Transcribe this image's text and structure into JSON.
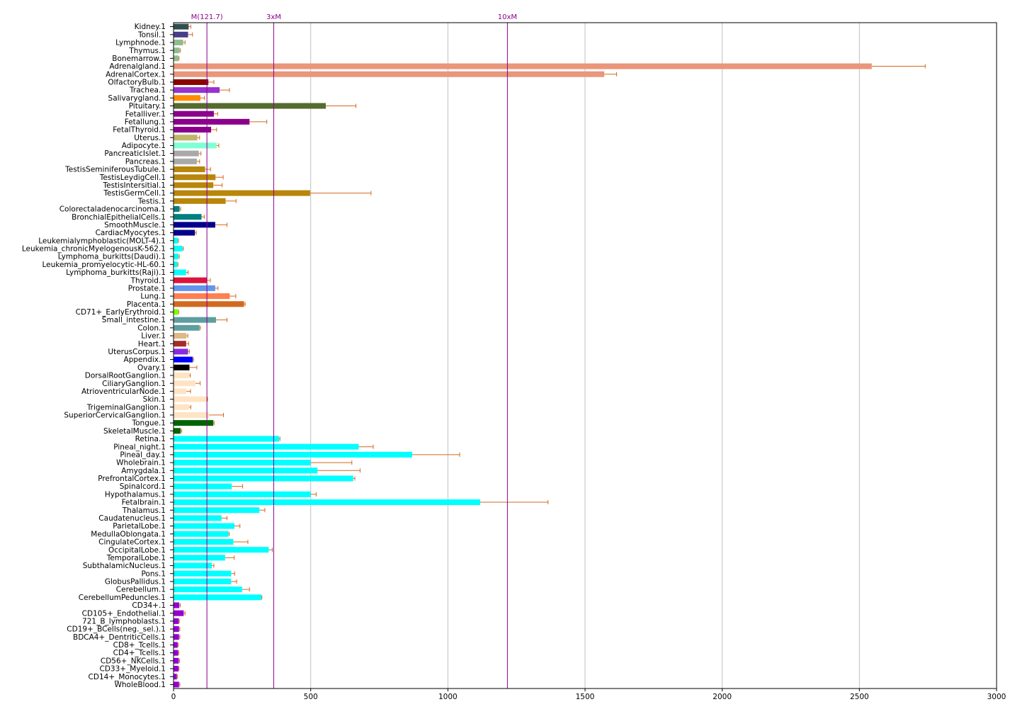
{
  "chart_data": {
    "type": "bar",
    "orientation": "horizontal",
    "title": "",
    "xlabel": "",
    "ylabel": "",
    "xlim": [
      0,
      3000
    ],
    "xticks": [
      0,
      500,
      1000,
      1500,
      2000,
      2500,
      3000
    ],
    "grid": "vertical",
    "legend": "none",
    "reference_lines": [
      {
        "label": "M(121.7)",
        "value": 121.7
      },
      {
        "label": "3xM",
        "value": 365.1
      },
      {
        "label": "10xM",
        "value": 1217
      }
    ],
    "colors": {
      "reference": "#8b008b",
      "errorbar": "#d2691e",
      "grid": "#bfbfbf"
    },
    "bars": [
      {
        "label": "Kidney.1",
        "value": 55,
        "error": 8,
        "color": "#2f4f4f"
      },
      {
        "label": "Tonsil.1",
        "value": 53,
        "error": 16,
        "color": "#483d8b"
      },
      {
        "label": "Lymphnode.1",
        "value": 35,
        "error": 7,
        "color": "#8fbc8f"
      },
      {
        "label": "Thymus.1",
        "value": 22,
        "error": 3,
        "color": "#8fbc8f"
      },
      {
        "label": "Bonemarrow.1",
        "value": 18,
        "error": 2,
        "color": "#8fbc8f"
      },
      {
        "label": "Adrenalgland.1",
        "value": 2545,
        "error": 195,
        "color": "#e9967a"
      },
      {
        "label": "AdrenalCortex.1",
        "value": 1570,
        "error": 45,
        "color": "#e9967a"
      },
      {
        "label": "OlfactoryBulb.1",
        "value": 127,
        "error": 20,
        "color": "#8b0000"
      },
      {
        "label": "Trachea.1",
        "value": 168,
        "error": 36,
        "color": "#9932cc"
      },
      {
        "label": "Salivarygland.1",
        "value": 98,
        "error": 15,
        "color": "#ff8c00"
      },
      {
        "label": "Pituitary.1",
        "value": 555,
        "error": 110,
        "color": "#556b2f"
      },
      {
        "label": "Fetalliver.1",
        "value": 147,
        "error": 14,
        "color": "#8b008b"
      },
      {
        "label": "Fetallung.1",
        "value": 277,
        "error": 63,
        "color": "#8b008b"
      },
      {
        "label": "FetalThyroid.1",
        "value": 137,
        "error": 20,
        "color": "#8b008b"
      },
      {
        "label": "Uterus.1",
        "value": 87,
        "error": 8,
        "color": "#bdb76b"
      },
      {
        "label": "Adipocyte.1",
        "value": 157,
        "error": 8,
        "color": "#7fffd4"
      },
      {
        "label": "PancreaticIslet.1",
        "value": 92,
        "error": 8,
        "color": "#a9a9a9"
      },
      {
        "label": "Pancreas.1",
        "value": 85,
        "error": 10,
        "color": "#a9a9a9"
      },
      {
        "label": "TestisSeminiferousTubule.1",
        "value": 115,
        "error": 20,
        "color": "#b8860b"
      },
      {
        "label": "TestisLeydigCell.1",
        "value": 153,
        "error": 28,
        "color": "#b8860b"
      },
      {
        "label": "TestisIntersitial.1",
        "value": 145,
        "error": 32,
        "color": "#b8860b"
      },
      {
        "label": "TestisGermCell.1",
        "value": 498,
        "error": 222,
        "color": "#b8860b"
      },
      {
        "label": "Testis.1",
        "value": 190,
        "error": 38,
        "color": "#b8860b"
      },
      {
        "label": "Colorectaladenocarcinoma.1",
        "value": 22,
        "error": 4,
        "color": "#008080"
      },
      {
        "label": "BronchialEpithelialCells.1",
        "value": 102,
        "error": 10,
        "color": "#008080"
      },
      {
        "label": "SmoothMuscle.1",
        "value": 152,
        "error": 43,
        "color": "#00008b"
      },
      {
        "label": "CardiacMyocytes.1",
        "value": 78,
        "error": 5,
        "color": "#00008b"
      },
      {
        "label": "Leukemialymphoblastic(MOLT-4).1",
        "value": 16,
        "error": 2,
        "color": "#00ffff"
      },
      {
        "label": "Leukemia_chronicMyelogenousK-562.1",
        "value": 33,
        "error": 3,
        "color": "#00ffff"
      },
      {
        "label": "Lymphoma_burkitts(Daudi).1",
        "value": 18,
        "error": 3,
        "color": "#00ffff"
      },
      {
        "label": "Leukemia_promyelocytic-HL-60.1",
        "value": 14,
        "error": 2,
        "color": "#00ffff"
      },
      {
        "label": "Lymphoma_burkitts(Raji).1",
        "value": 46,
        "error": 7,
        "color": "#00ffff"
      },
      {
        "label": "Thyroid.1",
        "value": 122,
        "error": 12,
        "color": "#dc143c"
      },
      {
        "label": "Prostate.1",
        "value": 152,
        "error": 10,
        "color": "#6495ed"
      },
      {
        "label": "Lung.1",
        "value": 205,
        "error": 22,
        "color": "#ff7f50"
      },
      {
        "label": "Placenta.1",
        "value": 257,
        "error": 4,
        "color": "#d2691e"
      },
      {
        "label": "CD71+_EarlyErythroid.1",
        "value": 17,
        "error": 2,
        "color": "#7fff00"
      },
      {
        "label": "Small_intestine.1",
        "value": 155,
        "error": 40,
        "color": "#5f9ea0"
      },
      {
        "label": "Colon.1",
        "value": 95,
        "error": 3,
        "color": "#5f9ea0"
      },
      {
        "label": "Liver.1",
        "value": 47,
        "error": 5,
        "color": "#deb887"
      },
      {
        "label": "Heart.1",
        "value": 46,
        "error": 9,
        "color": "#a52a2a"
      },
      {
        "label": "UterusCorpus.1",
        "value": 53,
        "error": 5,
        "color": "#8a2be2"
      },
      {
        "label": "Appendix.1",
        "value": 70,
        "error": 3,
        "color": "#0000ff"
      },
      {
        "label": "Ovary.1",
        "value": 58,
        "error": 27,
        "color": "#000000"
      },
      {
        "label": "DorsalRootGanglion.1",
        "value": 57,
        "error": 4,
        "color": "#ffe4c4"
      },
      {
        "label": "CiliaryGanglion.1",
        "value": 80,
        "error": 17,
        "color": "#ffe4c4"
      },
      {
        "label": "AtrioventricularNode.1",
        "value": 47,
        "error": 15,
        "color": "#ffe4c4"
      },
      {
        "label": "Skin.1",
        "value": 122,
        "error": 2,
        "color": "#ffe4c4"
      },
      {
        "label": "TrigeminalGanglion.1",
        "value": 56,
        "error": 7,
        "color": "#ffe4c4"
      },
      {
        "label": "SuperiorCervicalGanglion.1",
        "value": 130,
        "error": 52,
        "color": "#ffe4c4"
      },
      {
        "label": "Tongue.1",
        "value": 145,
        "error": 3,
        "color": "#006400"
      },
      {
        "label": "SkeletalMuscle.1",
        "value": 26,
        "error": 4,
        "color": "#006400"
      },
      {
        "label": "Retina.1",
        "value": 385,
        "error": 3,
        "color": "#00ffff"
      },
      {
        "label": "Pineal_night.1",
        "value": 675,
        "error": 53,
        "color": "#00ffff"
      },
      {
        "label": "Pineal_day.1",
        "value": 870,
        "error": 173,
        "color": "#00ffff"
      },
      {
        "label": "Wholebrain.1",
        "value": 500,
        "error": 150,
        "color": "#00ffff"
      },
      {
        "label": "Amygdala.1",
        "value": 525,
        "error": 155,
        "color": "#00ffff"
      },
      {
        "label": "PrefrontalCortex.1",
        "value": 655,
        "error": 6,
        "color": "#00ffff"
      },
      {
        "label": "Spinalcord.1",
        "value": 212,
        "error": 40,
        "color": "#00ffff"
      },
      {
        "label": "Hypothalamus.1",
        "value": 500,
        "error": 20,
        "color": "#00ffff"
      },
      {
        "label": "Fetalbrain.1",
        "value": 1118,
        "error": 247,
        "color": "#00ffff"
      },
      {
        "label": "Thalamus.1",
        "value": 313,
        "error": 20,
        "color": "#00ffff"
      },
      {
        "label": "Caudatenucleus.1",
        "value": 175,
        "error": 20,
        "color": "#00ffff"
      },
      {
        "label": "ParietalLobe.1",
        "value": 222,
        "error": 20,
        "color": "#00ffff"
      },
      {
        "label": "MedullaOblongata.1",
        "value": 200,
        "error": 3,
        "color": "#00ffff"
      },
      {
        "label": "CingulateCortex.1",
        "value": 218,
        "error": 53,
        "color": "#00ffff"
      },
      {
        "label": "OccipitalLobe.1",
        "value": 347,
        "error": 13,
        "color": "#00ffff"
      },
      {
        "label": "TemporalLobe.1",
        "value": 188,
        "error": 33,
        "color": "#00ffff"
      },
      {
        "label": "SubthalamicNucleus.1",
        "value": 140,
        "error": 7,
        "color": "#00ffff"
      },
      {
        "label": "Pons.1",
        "value": 210,
        "error": 13,
        "color": "#00ffff"
      },
      {
        "label": "GlobusPallidus.1",
        "value": 210,
        "error": 20,
        "color": "#00ffff"
      },
      {
        "label": "Cerebellum.1",
        "value": 250,
        "error": 27,
        "color": "#00ffff"
      },
      {
        "label": "CerebellumPeduncles.1",
        "value": 320,
        "error": 2,
        "color": "#00ffff"
      },
      {
        "label": "CD34+.1",
        "value": 21,
        "error": 4,
        "color": "#9400d3"
      },
      {
        "label": "CD105+_Endothelial.1",
        "value": 37,
        "error": 5,
        "color": "#9400d3"
      },
      {
        "label": "721_B_lymphoblasts.1",
        "value": 19,
        "error": 2,
        "color": "#9400d3"
      },
      {
        "label": "CD19+_BCells(neg._sel.).1",
        "value": 20,
        "error": 3,
        "color": "#9400d3"
      },
      {
        "label": "BDCA4+_DentriticCells.1",
        "value": 20,
        "error": 3,
        "color": "#9400d3"
      },
      {
        "label": "CD8+_Tcells.1",
        "value": 15,
        "error": 2,
        "color": "#9400d3"
      },
      {
        "label": "CD4+_Tcells.1",
        "value": 17,
        "error": 2,
        "color": "#9400d3"
      },
      {
        "label": "CD56+_NKCells.1",
        "value": 19,
        "error": 3,
        "color": "#9400d3"
      },
      {
        "label": "CD33+_Myeloid.1",
        "value": 18,
        "error": 2,
        "color": "#9400d3"
      },
      {
        "label": "CD14+_Monocytes.1",
        "value": 12,
        "error": 2,
        "color": "#9400d3"
      },
      {
        "label": "WholeBlood.1",
        "value": 20,
        "error": 3,
        "color": "#9400d3"
      }
    ]
  }
}
